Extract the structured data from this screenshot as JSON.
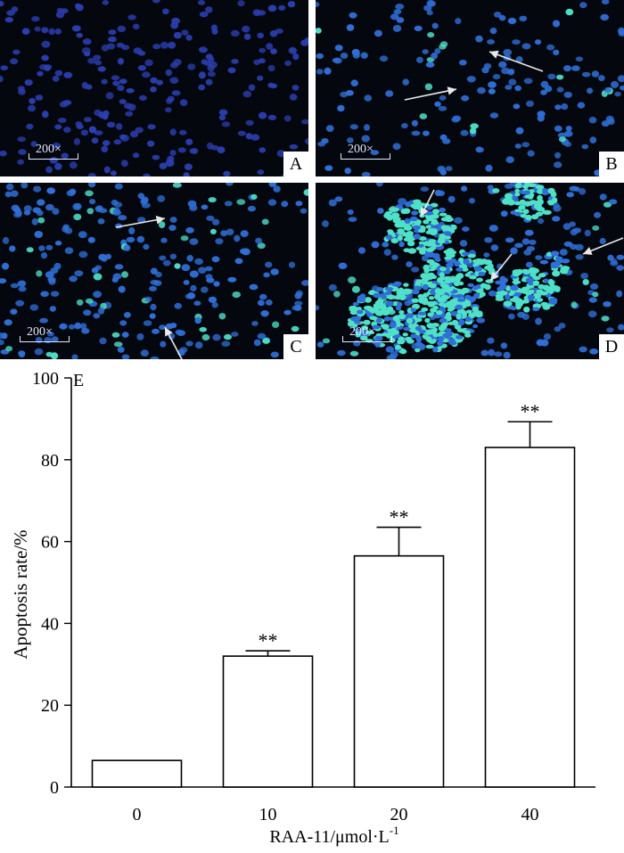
{
  "panels": [
    {
      "letter": "A",
      "magnification": "200×",
      "arrows": false
    },
    {
      "letter": "B",
      "magnification": "200×",
      "arrows": true
    },
    {
      "letter": "C",
      "magnification": "200×",
      "arrows": true
    },
    {
      "letter": "D",
      "magnification": "200×",
      "arrows": true
    }
  ],
  "colors": {
    "background": "#05070f",
    "nucleus_normal": "#2f6fd6",
    "nucleus_dim": "#2a3fb0",
    "nucleus_apoptotic": "#4fe0c8",
    "arrow": "#e8e8e8"
  },
  "chart_data": {
    "type": "bar",
    "panel_letter": "E",
    "categories": [
      "0",
      "10",
      "20",
      "40"
    ],
    "values": [
      6.5,
      32,
      56.5,
      83
    ],
    "errors": [
      0,
      1.3,
      7,
      6.3
    ],
    "significance": [
      "",
      "**",
      "**",
      "**"
    ],
    "ylabel": "Apoptosis rate/%",
    "xlabel_base": "RAA-11/μmol·L",
    "xlabel_sup": "-1",
    "ylim": [
      0,
      100
    ],
    "yticks": [
      0,
      20,
      40,
      60,
      80,
      100
    ],
    "grid": false,
    "bar_color": "#ffffff",
    "edge_color": "#000000"
  }
}
